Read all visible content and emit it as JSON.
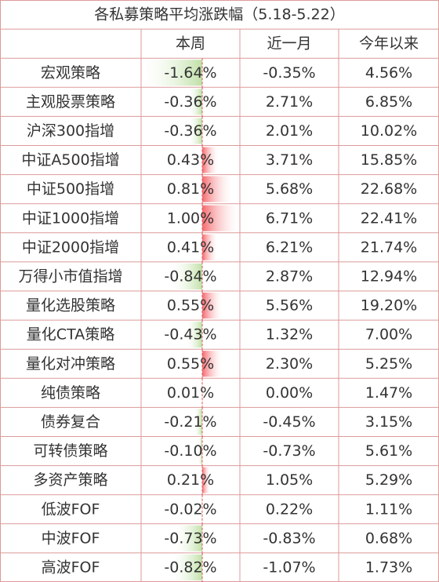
{
  "title": "各私募策略平均涨跌幅（5.18-5.22）",
  "header": [
    "本周",
    "近一月",
    "今年以来"
  ],
  "rows": [
    [
      "宏观策略",
      "-1.64%",
      "-0.35%",
      "4.56%"
    ],
    [
      "主观股票策略",
      "-0.36%",
      "2.71%",
      "6.85%"
    ],
    [
      "沪深300指增",
      "-0.36%",
      "2.01%",
      "10.02%"
    ],
    [
      "中证A500指增",
      "0.43%",
      "3.71%",
      "15.85%"
    ],
    [
      "中证500指增",
      "0.81%",
      "5.68%",
      "22.68%"
    ],
    [
      "中证1000指增",
      "1.00%",
      "6.71%",
      "22.41%"
    ],
    [
      "中证2000指增",
      "0.41%",
      "6.21%",
      "21.74%"
    ],
    [
      "万得小市值指增",
      "-0.84%",
      "2.87%",
      "12.94%"
    ],
    [
      "量化选股策略",
      "0.55%",
      "5.56%",
      "19.20%"
    ],
    [
      "量化CTA策略",
      "-0.43%",
      "1.32%",
      "7.00%"
    ],
    [
      "量化对冲策略",
      "0.55%",
      "2.30%",
      "5.25%"
    ],
    [
      "纯债策略",
      "0.01%",
      "0.00%",
      "1.47%"
    ],
    [
      "债券复合",
      "-0.21%",
      "-0.45%",
      "3.15%"
    ],
    [
      "可转债策略",
      "-0.10%",
      "-0.73%",
      "5.61%"
    ],
    [
      "多资产策略",
      "0.21%",
      "1.05%",
      "5.29%"
    ],
    [
      "低波FOF",
      "-0.02%",
      "0.22%",
      "1.11%"
    ],
    [
      "中波FOF",
      "-0.73%",
      "-0.83%",
      "0.68%"
    ],
    [
      "高波FOF",
      "-0.82%",
      "-1.07%",
      "1.73%"
    ]
  ]
}
